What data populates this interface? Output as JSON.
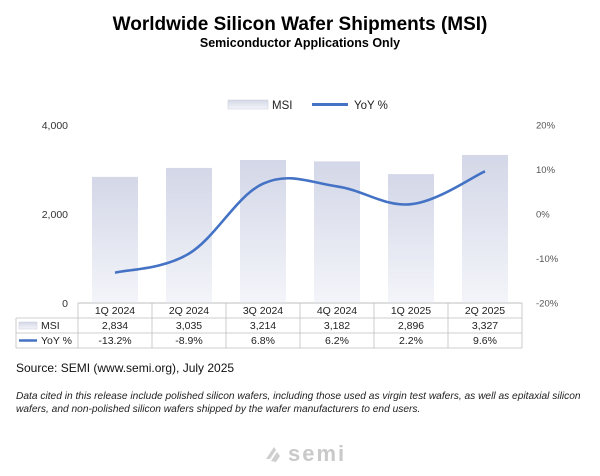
{
  "chart_data": {
    "type": "bar",
    "title": "Worldwide Silicon Wafer Shipments (MSI)",
    "subtitle": "Semiconductor Applications Only",
    "categories": [
      "1Q 2024",
      "2Q 2024",
      "3Q 2024",
      "4Q 2024",
      "1Q 2025",
      "2Q 2025"
    ],
    "series": [
      {
        "name": "MSI",
        "type": "bar",
        "axis": "left",
        "values": [
          2834,
          3035,
          3214,
          3182,
          2896,
          3327
        ],
        "labels": [
          "2,834",
          "3,035",
          "3,214",
          "3,182",
          "2,896",
          "3,327"
        ]
      },
      {
        "name": "YoY %",
        "type": "line",
        "axis": "right",
        "values": [
          -13.2,
          -8.9,
          6.8,
          6.2,
          2.2,
          9.6
        ],
        "labels": [
          "-13.2%",
          "-8.9%",
          "6.8%",
          "6.2%",
          "2.2%",
          "9.6%"
        ]
      }
    ],
    "y_left": {
      "range": [
        0,
        4000
      ],
      "ticks": [
        0,
        2000,
        4000
      ],
      "tick_labels": [
        "0",
        "2,000",
        "4,000"
      ]
    },
    "y_right": {
      "range": [
        -20,
        20
      ],
      "ticks": [
        20,
        10,
        0,
        -10,
        -20
      ],
      "tick_labels": [
        "20%",
        "10%",
        "0%",
        "-10%",
        "-20%"
      ]
    },
    "legend": {
      "position": "top",
      "items": [
        "MSI",
        "YoY %"
      ]
    },
    "data_table": true,
    "grid": false
  },
  "colors": {
    "line": "#4472c4",
    "bar_top": "#d5d9e8",
    "bar_bottom": "#f3f4f9",
    "table_border": "#bfbfbf"
  },
  "source": "Source: SEMI (www.semi.org), July 2025",
  "note": "Data cited in this release include polished silicon wafers, including those used as virgin test wafers, as well as epitaxial silicon wafers, and non-polished silicon wafers shipped by the wafer manufacturers to end users.",
  "logo": {
    "text": "semi",
    "icon": "semi-logo-icon"
  }
}
